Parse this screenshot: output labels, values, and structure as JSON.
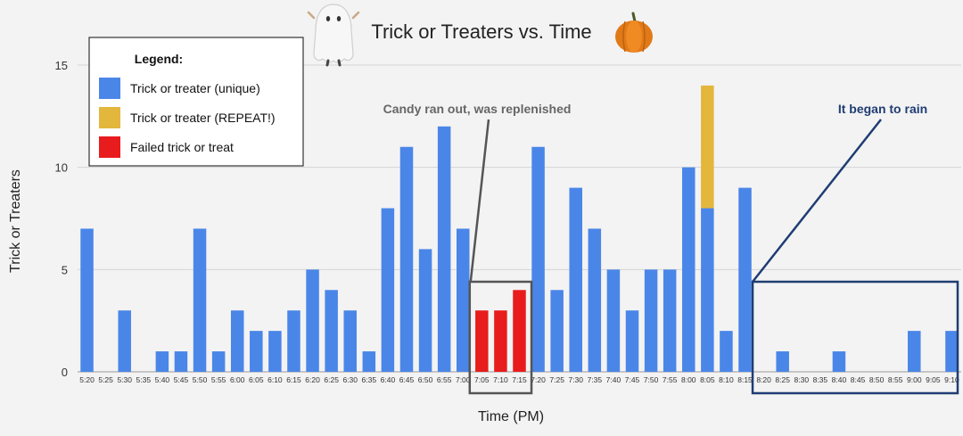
{
  "chart_data": {
    "type": "bar",
    "stacked": true,
    "title": "Trick or Treaters vs. Time",
    "xlabel": "Time (PM)",
    "ylabel": "Trick or Treaters",
    "ylim": [
      0,
      15
    ],
    "yticks": [
      0,
      5,
      10,
      15
    ],
    "grid": true,
    "categories": [
      "5:20",
      "5:25",
      "5:30",
      "5:35",
      "5:40",
      "5:45",
      "5:50",
      "5:55",
      "6:00",
      "6:05",
      "6:10",
      "6:15",
      "6:20",
      "6:25",
      "6:30",
      "6:35",
      "6:40",
      "6:45",
      "6:50",
      "6:55",
      "7:00",
      "7:05",
      "7:10",
      "7:15",
      "7:20",
      "7:25",
      "7:30",
      "7:35",
      "7:40",
      "7:45",
      "7:50",
      "7:55",
      "8:00",
      "8:05",
      "8:10",
      "8:15",
      "8:20",
      "8:25",
      "8:30",
      "8:35",
      "8:40",
      "8:45",
      "8:50",
      "8:55",
      "9:00",
      "9:05",
      "9:10"
    ],
    "series": [
      {
        "name": "Trick or treater (unique)",
        "color": "#4a86e8",
        "values": [
          7,
          0,
          3,
          0,
          1,
          1,
          7,
          1,
          3,
          2,
          2,
          3,
          5,
          4,
          3,
          1,
          8,
          11,
          6,
          12,
          7,
          0,
          0,
          0,
          11,
          4,
          9,
          7,
          5,
          3,
          5,
          5,
          10,
          8,
          2,
          9,
          0,
          1,
          0,
          0,
          1,
          0,
          0,
          0,
          2,
          0,
          2
        ]
      },
      {
        "name": "Trick or treater (REPEAT!)",
        "color": "#e3b63c",
        "values": [
          0,
          0,
          0,
          0,
          0,
          0,
          0,
          0,
          0,
          0,
          0,
          0,
          0,
          0,
          0,
          0,
          0,
          0,
          0,
          0,
          0,
          0,
          0,
          0,
          0,
          0,
          0,
          0,
          0,
          0,
          0,
          0,
          0,
          6,
          0,
          0,
          0,
          0,
          0,
          0,
          0,
          0,
          0,
          0,
          0,
          0,
          0
        ]
      },
      {
        "name": "Failed trick or treat",
        "color": "#e81c1c",
        "values": [
          0,
          0,
          0,
          0,
          0,
          0,
          0,
          0,
          0,
          0,
          0,
          0,
          0,
          0,
          0,
          0,
          0,
          0,
          0,
          0,
          0,
          3,
          3,
          4,
          0,
          0,
          0,
          0,
          0,
          0,
          0,
          0,
          0,
          0,
          0,
          0,
          0,
          0,
          0,
          0,
          0,
          0,
          0,
          0,
          0,
          0,
          0
        ]
      }
    ],
    "legend": {
      "title": "Legend:",
      "placement": "top-left"
    },
    "annotations": [
      {
        "text": "Candy ran out, was replenished",
        "color": "#666666",
        "box_categories": [
          "7:05",
          "7:15"
        ]
      },
      {
        "text": "It began to rain",
        "color": "#1f3d73",
        "box_categories": [
          "8:20",
          "9:10"
        ]
      }
    ]
  },
  "decorations": {
    "ghost": "ghost-icon",
    "pumpkin": "pumpkin-icon"
  }
}
